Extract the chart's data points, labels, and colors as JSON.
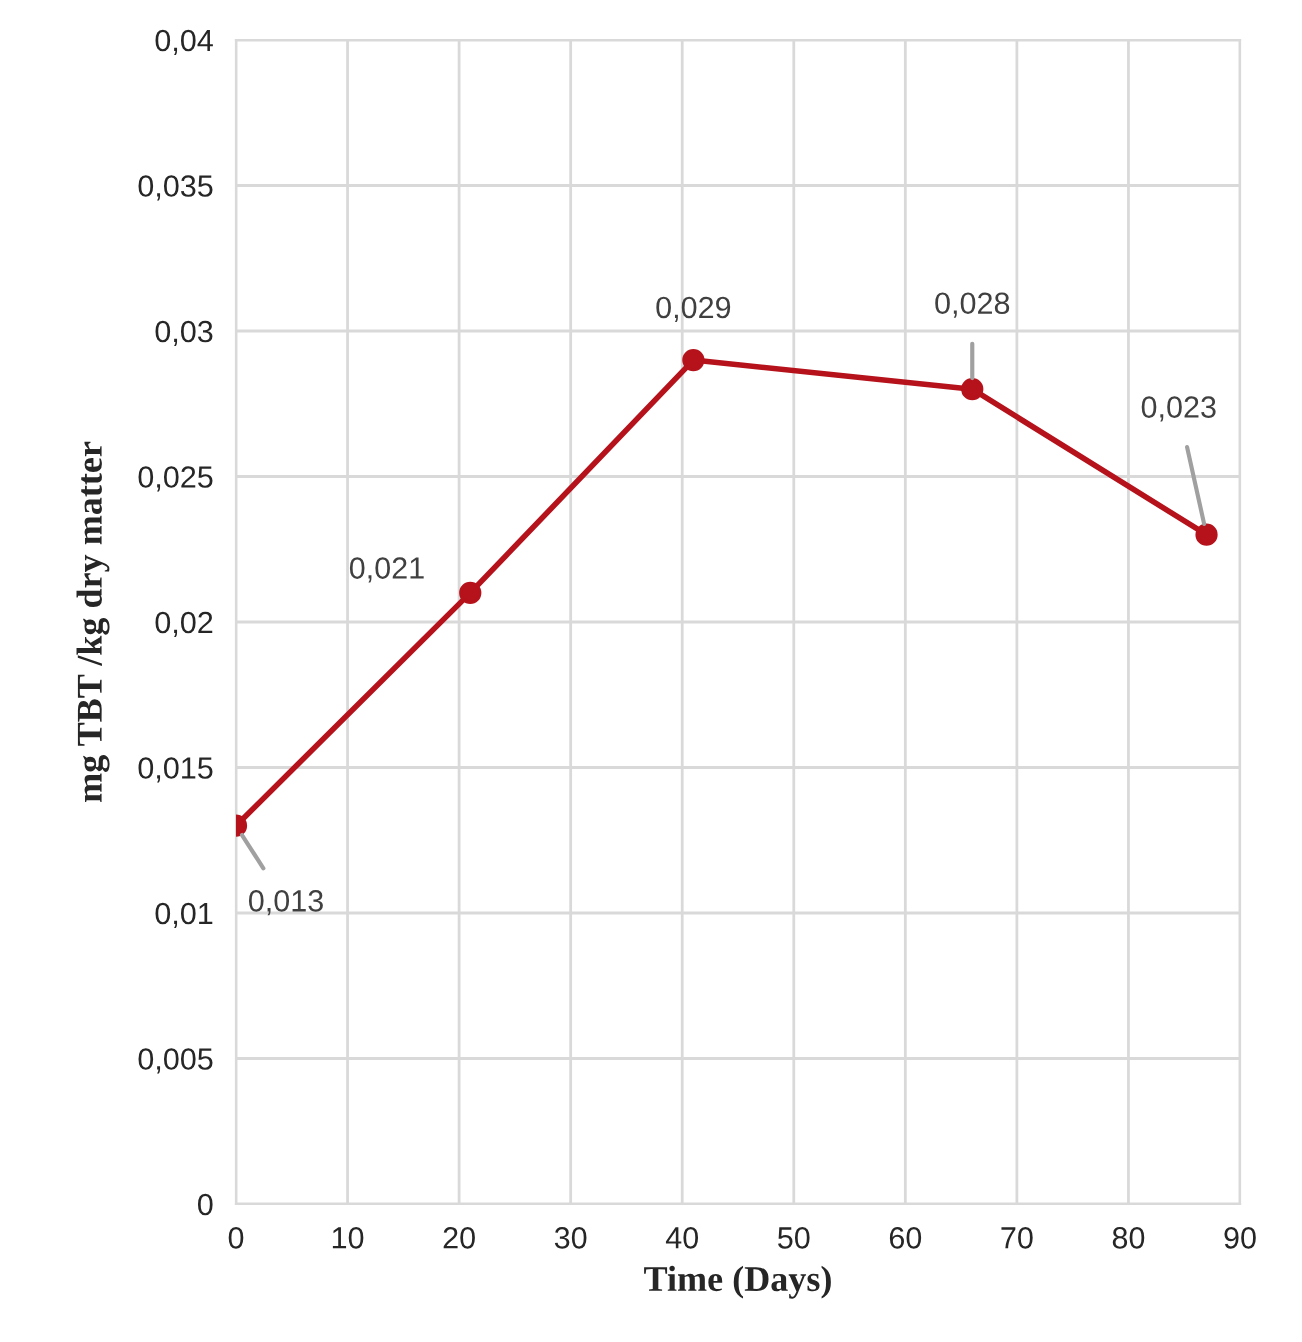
{
  "chart_data": {
    "type": "line",
    "xlabel": "Time (Days)",
    "ylabel": "mg TBT /kg dry matter",
    "x": [
      0,
      21,
      41,
      66,
      87
    ],
    "series": [
      {
        "color": "#b5121b",
        "values": [
          0.013,
          0.021,
          0.029,
          0.028,
          0.023
        ],
        "value_labels": [
          "0,013",
          "0,021",
          "0,029",
          "0,028",
          "0,023"
        ]
      }
    ],
    "xlim": [
      0,
      90
    ],
    "xticks": [
      0,
      10,
      20,
      30,
      40,
      50,
      60,
      70,
      80,
      90
    ],
    "ylim": [
      0,
      0.04
    ],
    "yticks": [
      {
        "value": 0,
        "label": "0"
      },
      {
        "value": 0.005,
        "label": "0,005"
      },
      {
        "value": 0.01,
        "label": "0,01"
      },
      {
        "value": 0.015,
        "label": "0,015"
      },
      {
        "value": 0.02,
        "label": "0,02"
      },
      {
        "value": 0.025,
        "label": "0,025"
      },
      {
        "value": 0.03,
        "label": "0,03"
      },
      {
        "value": 0.035,
        "label": "0,035"
      },
      {
        "value": 0.04,
        "label": "0,04"
      }
    ],
    "grid": true,
    "marker": "circle",
    "line_style": "solid"
  }
}
